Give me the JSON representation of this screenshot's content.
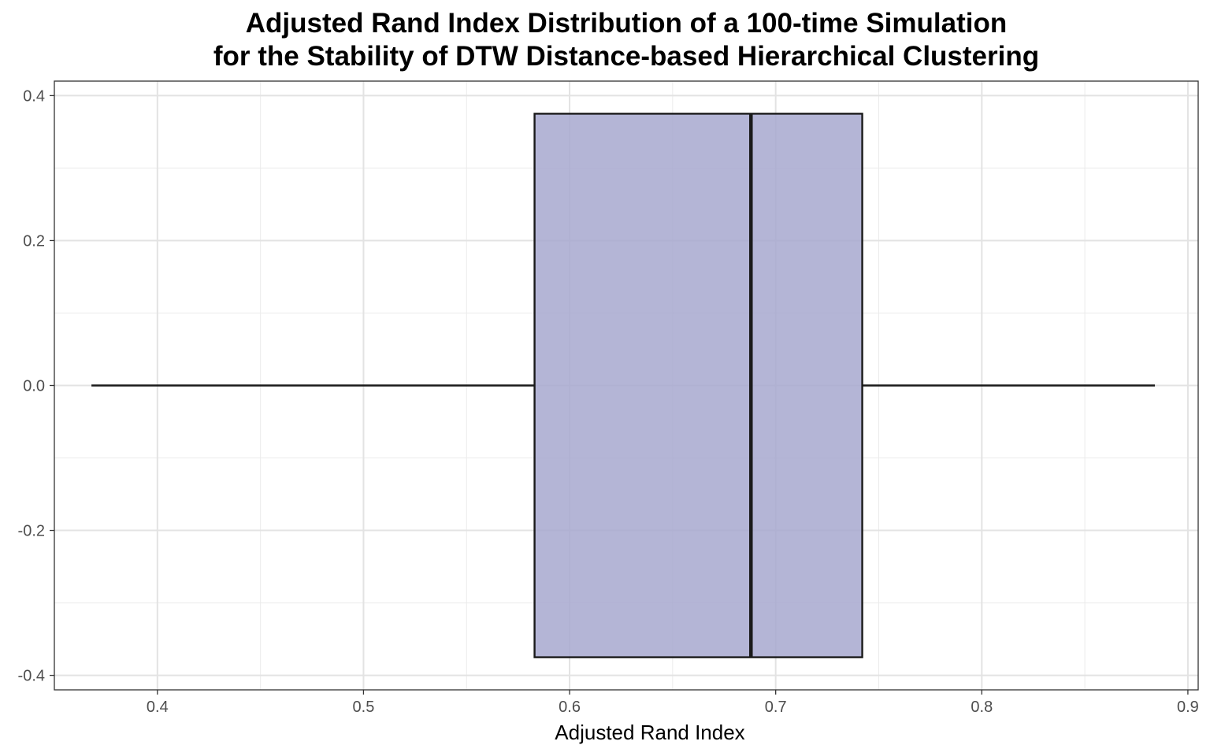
{
  "title_lines": [
    "Adjusted Rand Index Distribution of a 100-time Simulation",
    "for the Stability of DTW Distance-based Hierarchical Clustering"
  ],
  "chart_data": {
    "type": "boxplot",
    "title": "Adjusted Rand Index Distribution of a 100-time Simulation for the Stability of DTW Distance-based Hierarchical Clustering",
    "xlabel": "Adjusted Rand Index",
    "ylabel": "",
    "xlim": [
      0.35,
      0.905
    ],
    "ylim": [
      -0.42,
      0.42
    ],
    "x_ticks": [
      "0.4",
      "0.5",
      "0.6",
      "0.7",
      "0.8",
      "0.9"
    ],
    "y_ticks": [
      "-0.4",
      "-0.2",
      "0.0",
      "0.2",
      "0.4"
    ],
    "box": {
      "min": 0.368,
      "q1": 0.583,
      "median": 0.688,
      "q3": 0.742,
      "max": 0.884,
      "y_center": 0.0,
      "y_half_width": 0.375
    },
    "fill_color": "#a7a8cf",
    "outline_color": "#1a1a1a",
    "grid": true,
    "legend": "none"
  }
}
